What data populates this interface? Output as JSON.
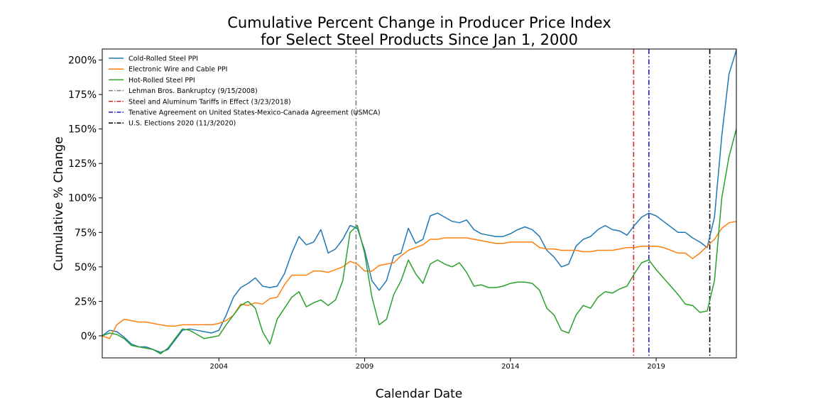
{
  "chart_data": {
    "type": "line",
    "title_lines": [
      "Cumulative Percent Change in Producer Price Index",
      "for Select Steel Products Since Jan 1, 2000"
    ],
    "xlabel": "Calendar Date",
    "ylabel": "Cumulative % Change",
    "xlim": [
      "2000-01",
      "2021-10"
    ],
    "ylim": [
      -16,
      208
    ],
    "x_ticks": [
      {
        "date": "2004-01",
        "label": "2004"
      },
      {
        "date": "2009-01",
        "label": "2009"
      },
      {
        "date": "2014-01",
        "label": "2014"
      },
      {
        "date": "2019-01",
        "label": "2019"
      }
    ],
    "y_ticks": [
      {
        "value": 0,
        "label": "0%"
      },
      {
        "value": 25,
        "label": "25%"
      },
      {
        "value": 50,
        "label": "50%"
      },
      {
        "value": 75,
        "label": "75%"
      },
      {
        "value": 100,
        "label": "100%"
      },
      {
        "value": 125,
        "label": "125%"
      },
      {
        "value": 150,
        "label": "150%"
      },
      {
        "value": 175,
        "label": "175%"
      },
      {
        "value": 200,
        "label": "200%"
      }
    ],
    "grid": false,
    "legend_position": "upper-left",
    "series": [
      {
        "name": "Cold-Rolled Steel PPI",
        "color": "#1f77b4",
        "points": [
          [
            "2000-01",
            0
          ],
          [
            "2000-04",
            4
          ],
          [
            "2000-07",
            3
          ],
          [
            "2000-10",
            -1
          ],
          [
            "2001-01",
            -6
          ],
          [
            "2001-04",
            -8
          ],
          [
            "2001-07",
            -8
          ],
          [
            "2001-10",
            -10
          ],
          [
            "2002-01",
            -12
          ],
          [
            "2002-04",
            -10
          ],
          [
            "2002-07",
            -3
          ],
          [
            "2002-10",
            4
          ],
          [
            "2003-01",
            5
          ],
          [
            "2003-04",
            4
          ],
          [
            "2003-07",
            3
          ],
          [
            "2003-10",
            2
          ],
          [
            "2004-01",
            4
          ],
          [
            "2004-04",
            15
          ],
          [
            "2004-07",
            28
          ],
          [
            "2004-10",
            35
          ],
          [
            "2005-01",
            38
          ],
          [
            "2005-04",
            42
          ],
          [
            "2005-07",
            36
          ],
          [
            "2005-10",
            35
          ],
          [
            "2006-01",
            36
          ],
          [
            "2006-04",
            45
          ],
          [
            "2006-07",
            60
          ],
          [
            "2006-10",
            72
          ],
          [
            "2007-01",
            66
          ],
          [
            "2007-04",
            68
          ],
          [
            "2007-07",
            77
          ],
          [
            "2007-10",
            60
          ],
          [
            "2008-01",
            63
          ],
          [
            "2008-04",
            70
          ],
          [
            "2008-07",
            80
          ],
          [
            "2008-10",
            78
          ],
          [
            "2009-01",
            62
          ],
          [
            "2009-04",
            40
          ],
          [
            "2009-07",
            33
          ],
          [
            "2009-10",
            40
          ],
          [
            "2010-01",
            58
          ],
          [
            "2010-04",
            60
          ],
          [
            "2010-07",
            78
          ],
          [
            "2010-10",
            67
          ],
          [
            "2011-01",
            70
          ],
          [
            "2011-04",
            87
          ],
          [
            "2011-07",
            89
          ],
          [
            "2011-10",
            86
          ],
          [
            "2012-01",
            83
          ],
          [
            "2012-04",
            82
          ],
          [
            "2012-07",
            84
          ],
          [
            "2012-10",
            77
          ],
          [
            "2013-01",
            74
          ],
          [
            "2013-04",
            73
          ],
          [
            "2013-07",
            72
          ],
          [
            "2013-10",
            72
          ],
          [
            "2014-01",
            74
          ],
          [
            "2014-04",
            77
          ],
          [
            "2014-07",
            79
          ],
          [
            "2014-10",
            77
          ],
          [
            "2015-01",
            72
          ],
          [
            "2015-04",
            62
          ],
          [
            "2015-07",
            57
          ],
          [
            "2015-10",
            50
          ],
          [
            "2016-01",
            52
          ],
          [
            "2016-04",
            65
          ],
          [
            "2016-07",
            70
          ],
          [
            "2016-10",
            72
          ],
          [
            "2017-01",
            77
          ],
          [
            "2017-04",
            80
          ],
          [
            "2017-07",
            77
          ],
          [
            "2017-10",
            76
          ],
          [
            "2018-01",
            73
          ],
          [
            "2018-04",
            80
          ],
          [
            "2018-07",
            86
          ],
          [
            "2018-10",
            89
          ],
          [
            "2019-01",
            87
          ],
          [
            "2019-04",
            83
          ],
          [
            "2019-07",
            79
          ],
          [
            "2019-10",
            75
          ],
          [
            "2020-01",
            75
          ],
          [
            "2020-04",
            71
          ],
          [
            "2020-07",
            68
          ],
          [
            "2020-10",
            64
          ],
          [
            "2021-01",
            86
          ],
          [
            "2021-04",
            145
          ],
          [
            "2021-07",
            190
          ],
          [
            "2021-10",
            207
          ]
        ]
      },
      {
        "name": "Electronic Wire and Cable PPI",
        "color": "#ff7f0e",
        "points": [
          [
            "2000-01",
            0
          ],
          [
            "2000-04",
            -2
          ],
          [
            "2000-07",
            8
          ],
          [
            "2000-10",
            12
          ],
          [
            "2001-01",
            11
          ],
          [
            "2001-04",
            10
          ],
          [
            "2001-07",
            10
          ],
          [
            "2001-10",
            9
          ],
          [
            "2002-01",
            8
          ],
          [
            "2002-04",
            7
          ],
          [
            "2002-07",
            7
          ],
          [
            "2002-10",
            8
          ],
          [
            "2003-01",
            8
          ],
          [
            "2003-04",
            8
          ],
          [
            "2003-07",
            8
          ],
          [
            "2003-10",
            8
          ],
          [
            "2004-01",
            9
          ],
          [
            "2004-04",
            11
          ],
          [
            "2004-07",
            15
          ],
          [
            "2004-10",
            23
          ],
          [
            "2005-01",
            22
          ],
          [
            "2005-04",
            24
          ],
          [
            "2005-07",
            23
          ],
          [
            "2005-10",
            27
          ],
          [
            "2006-01",
            28
          ],
          [
            "2006-04",
            37
          ],
          [
            "2006-07",
            44
          ],
          [
            "2006-10",
            44
          ],
          [
            "2007-01",
            44
          ],
          [
            "2007-04",
            47
          ],
          [
            "2007-07",
            47
          ],
          [
            "2007-10",
            46
          ],
          [
            "2008-01",
            48
          ],
          [
            "2008-04",
            50
          ],
          [
            "2008-07",
            54
          ],
          [
            "2008-10",
            52
          ],
          [
            "2009-01",
            47
          ],
          [
            "2009-04",
            47
          ],
          [
            "2009-07",
            51
          ],
          [
            "2009-10",
            52
          ],
          [
            "2010-01",
            53
          ],
          [
            "2010-04",
            58
          ],
          [
            "2010-07",
            62
          ],
          [
            "2010-10",
            64
          ],
          [
            "2011-01",
            66
          ],
          [
            "2011-04",
            70
          ],
          [
            "2011-07",
            70
          ],
          [
            "2011-10",
            71
          ],
          [
            "2012-01",
            71
          ],
          [
            "2012-04",
            71
          ],
          [
            "2012-07",
            71
          ],
          [
            "2012-10",
            70
          ],
          [
            "2013-01",
            69
          ],
          [
            "2013-04",
            68
          ],
          [
            "2013-07",
            67
          ],
          [
            "2013-10",
            67
          ],
          [
            "2014-01",
            68
          ],
          [
            "2014-04",
            68
          ],
          [
            "2014-07",
            68
          ],
          [
            "2014-10",
            68
          ],
          [
            "2015-01",
            64
          ],
          [
            "2015-04",
            63
          ],
          [
            "2015-07",
            63
          ],
          [
            "2015-10",
            62
          ],
          [
            "2016-01",
            62
          ],
          [
            "2016-04",
            62
          ],
          [
            "2016-07",
            61
          ],
          [
            "2016-10",
            61
          ],
          [
            "2017-01",
            62
          ],
          [
            "2017-04",
            62
          ],
          [
            "2017-07",
            62
          ],
          [
            "2017-10",
            63
          ],
          [
            "2018-01",
            64
          ],
          [
            "2018-04",
            64
          ],
          [
            "2018-07",
            65
          ],
          [
            "2018-10",
            65
          ],
          [
            "2019-01",
            65
          ],
          [
            "2019-04",
            64
          ],
          [
            "2019-07",
            62
          ],
          [
            "2019-10",
            60
          ],
          [
            "2020-01",
            60
          ],
          [
            "2020-04",
            56
          ],
          [
            "2020-07",
            60
          ],
          [
            "2020-10",
            65
          ],
          [
            "2021-01",
            70
          ],
          [
            "2021-04",
            78
          ],
          [
            "2021-07",
            82
          ],
          [
            "2021-10",
            83
          ]
        ]
      },
      {
        "name": "Hot-Rolled Steel PPI",
        "color": "#2ca02c",
        "points": [
          [
            "2000-01",
            0
          ],
          [
            "2000-04",
            2
          ],
          [
            "2000-07",
            1
          ],
          [
            "2000-10",
            -2
          ],
          [
            "2001-01",
            -7
          ],
          [
            "2001-04",
            -8
          ],
          [
            "2001-07",
            -9
          ],
          [
            "2001-10",
            -10
          ],
          [
            "2002-01",
            -13
          ],
          [
            "2002-04",
            -9
          ],
          [
            "2002-07",
            -2
          ],
          [
            "2002-10",
            5
          ],
          [
            "2003-01",
            4
          ],
          [
            "2003-04",
            1
          ],
          [
            "2003-07",
            -2
          ],
          [
            "2003-10",
            -1
          ],
          [
            "2004-01",
            0
          ],
          [
            "2004-04",
            8
          ],
          [
            "2004-07",
            15
          ],
          [
            "2004-10",
            22
          ],
          [
            "2005-01",
            25
          ],
          [
            "2005-04",
            20
          ],
          [
            "2005-07",
            3
          ],
          [
            "2005-10",
            -6
          ],
          [
            "2006-01",
            12
          ],
          [
            "2006-04",
            20
          ],
          [
            "2006-07",
            28
          ],
          [
            "2006-10",
            32
          ],
          [
            "2007-01",
            21
          ],
          [
            "2007-04",
            24
          ],
          [
            "2007-07",
            26
          ],
          [
            "2007-10",
            22
          ],
          [
            "2008-01",
            26
          ],
          [
            "2008-04",
            40
          ],
          [
            "2008-07",
            75
          ],
          [
            "2008-10",
            80
          ],
          [
            "2009-01",
            60
          ],
          [
            "2009-04",
            28
          ],
          [
            "2009-07",
            8
          ],
          [
            "2009-10",
            12
          ],
          [
            "2010-01",
            30
          ],
          [
            "2010-04",
            40
          ],
          [
            "2010-07",
            55
          ],
          [
            "2010-10",
            45
          ],
          [
            "2011-01",
            38
          ],
          [
            "2011-04",
            52
          ],
          [
            "2011-07",
            55
          ],
          [
            "2011-10",
            52
          ],
          [
            "2012-01",
            50
          ],
          [
            "2012-04",
            53
          ],
          [
            "2012-07",
            46
          ],
          [
            "2012-10",
            36
          ],
          [
            "2013-01",
            37
          ],
          [
            "2013-04",
            35
          ],
          [
            "2013-07",
            35
          ],
          [
            "2013-10",
            36
          ],
          [
            "2014-01",
            38
          ],
          [
            "2014-04",
            39
          ],
          [
            "2014-07",
            39
          ],
          [
            "2014-10",
            38
          ],
          [
            "2015-01",
            33
          ],
          [
            "2015-04",
            20
          ],
          [
            "2015-07",
            15
          ],
          [
            "2015-10",
            4
          ],
          [
            "2016-01",
            2
          ],
          [
            "2016-04",
            15
          ],
          [
            "2016-07",
            22
          ],
          [
            "2016-10",
            20
          ],
          [
            "2017-01",
            28
          ],
          [
            "2017-04",
            32
          ],
          [
            "2017-07",
            31
          ],
          [
            "2017-10",
            34
          ],
          [
            "2018-01",
            36
          ],
          [
            "2018-04",
            45
          ],
          [
            "2018-07",
            53
          ],
          [
            "2018-10",
            55
          ],
          [
            "2019-01",
            48
          ],
          [
            "2019-04",
            42
          ],
          [
            "2019-07",
            36
          ],
          [
            "2019-10",
            30
          ],
          [
            "2020-01",
            23
          ],
          [
            "2020-04",
            22
          ],
          [
            "2020-07",
            17
          ],
          [
            "2020-10",
            18
          ],
          [
            "2021-01",
            40
          ],
          [
            "2021-04",
            100
          ],
          [
            "2021-07",
            130
          ],
          [
            "2021-10",
            150
          ]
        ]
      }
    ],
    "events": [
      {
        "name": "Lehman Bros. Bankruptcy (9/15/2008)",
        "date": "2008-09-15",
        "color": "#7f7f7f"
      },
      {
        "name": "Steel and Aluminum Tariffs in Effect (3/23/2018)",
        "date": "2018-03-23",
        "color": "#d62728"
      },
      {
        "name": "Tenative Agreement on United States-Mexico-Canada Agreement (USMCA)",
        "date": "2018-10-01",
        "color": "#1f1fbf"
      },
      {
        "name": "U.S. Elections 2020 (11/3/2020)",
        "date": "2020-11-03",
        "color": "#000000"
      }
    ]
  }
}
